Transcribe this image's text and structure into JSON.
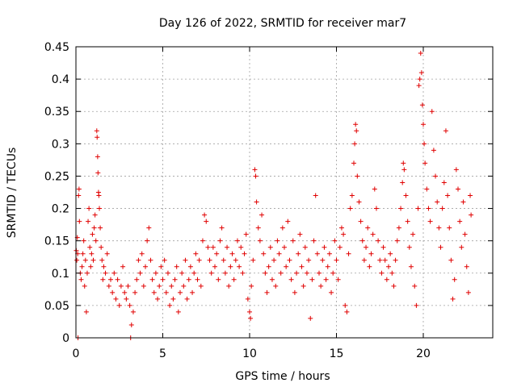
{
  "chart_data": {
    "type": "scatter",
    "title": "Day 126 of 2022, SRMTID for receiver mar7",
    "xlabel": "GPS time / hours",
    "ylabel": "SRMTID / TECUs",
    "xlim": [
      0,
      24
    ],
    "ylim": [
      0,
      0.45
    ],
    "xticks": [
      0,
      5,
      10,
      15,
      20
    ],
    "xtick_labels": [
      "0",
      "5",
      "10",
      "15",
      "20"
    ],
    "yticks": [
      0,
      0.05,
      0.1,
      0.15,
      0.2,
      0.25,
      0.3,
      0.35,
      0.4,
      0.45
    ],
    "ytick_labels": [
      "0",
      "0.05",
      "0.1",
      "0.15",
      "0.2",
      "0.25",
      "0.3",
      "0.35",
      "0.4",
      "0.45"
    ],
    "grid": true,
    "marker": "+",
    "color": "#e00000",
    "series": [
      {
        "name": "SRMTID",
        "points": [
          [
            0.02,
            0.135
          ],
          [
            0.05,
            0.12
          ],
          [
            0.08,
            0.155
          ],
          [
            0.1,
            0.13
          ],
          [
            0.12,
            0.0
          ],
          [
            0.15,
            0.22
          ],
          [
            0.18,
            0.23
          ],
          [
            0.2,
            0.18
          ],
          [
            0.25,
            0.1
          ],
          [
            0.3,
            0.09
          ],
          [
            0.35,
            0.11
          ],
          [
            0.4,
            0.13
          ],
          [
            0.45,
            0.15
          ],
          [
            0.5,
            0.08
          ],
          [
            0.55,
            0.12
          ],
          [
            0.6,
            0.04
          ],
          [
            0.65,
            0.1
          ],
          [
            0.7,
            0.18
          ],
          [
            0.75,
            0.2
          ],
          [
            0.8,
            0.14
          ],
          [
            0.85,
            0.11
          ],
          [
            0.9,
            0.13
          ],
          [
            0.95,
            0.16
          ],
          [
            1.0,
            0.12
          ],
          [
            1.05,
            0.17
          ],
          [
            1.1,
            0.19
          ],
          [
            1.15,
            0.15
          ],
          [
            1.2,
            0.32
          ],
          [
            1.22,
            0.31
          ],
          [
            1.25,
            0.28
          ],
          [
            1.27,
            0.255
          ],
          [
            1.3,
            0.225
          ],
          [
            1.32,
            0.22
          ],
          [
            1.35,
            0.2
          ],
          [
            1.4,
            0.17
          ],
          [
            1.45,
            0.14
          ],
          [
            1.5,
            0.12
          ],
          [
            1.55,
            0.09
          ],
          [
            1.6,
            0.11
          ],
          [
            1.7,
            0.1
          ],
          [
            1.8,
            0.13
          ],
          [
            1.9,
            0.08
          ],
          [
            2.0,
            0.09
          ],
          [
            2.1,
            0.07
          ],
          [
            2.2,
            0.1
          ],
          [
            2.3,
            0.06
          ],
          [
            2.4,
            0.09
          ],
          [
            2.5,
            0.05
          ],
          [
            2.6,
            0.08
          ],
          [
            2.7,
            0.11
          ],
          [
            2.8,
            0.07
          ],
          [
            2.9,
            0.06
          ],
          [
            3.0,
            0.08
          ],
          [
            3.1,
            0.05
          ],
          [
            3.15,
            0.0
          ],
          [
            3.2,
            0.02
          ],
          [
            3.3,
            0.04
          ],
          [
            3.4,
            0.07
          ],
          [
            3.5,
            0.09
          ],
          [
            3.6,
            0.12
          ],
          [
            3.7,
            0.1
          ],
          [
            3.8,
            0.13
          ],
          [
            3.9,
            0.08
          ],
          [
            4.0,
            0.11
          ],
          [
            4.1,
            0.15
          ],
          [
            4.2,
            0.17
          ],
          [
            4.3,
            0.12
          ],
          [
            4.4,
            0.09
          ],
          [
            4.5,
            0.07
          ],
          [
            4.6,
            0.1
          ],
          [
            4.7,
            0.06
          ],
          [
            4.8,
            0.08
          ],
          [
            4.9,
            0.11
          ],
          [
            5.0,
            0.09
          ],
          [
            5.1,
            0.12
          ],
          [
            5.2,
            0.07
          ],
          [
            5.3,
            0.1
          ],
          [
            5.4,
            0.05
          ],
          [
            5.5,
            0.08
          ],
          [
            5.6,
            0.06
          ],
          [
            5.7,
            0.09
          ],
          [
            5.8,
            0.11
          ],
          [
            5.9,
            0.04
          ],
          [
            6.0,
            0.07
          ],
          [
            6.1,
            0.1
          ],
          [
            6.2,
            0.08
          ],
          [
            6.3,
            0.12
          ],
          [
            6.4,
            0.06
          ],
          [
            6.5,
            0.09
          ],
          [
            6.6,
            0.11
          ],
          [
            6.7,
            0.07
          ],
          [
            6.8,
            0.1
          ],
          [
            6.9,
            0.13
          ],
          [
            7.0,
            0.09
          ],
          [
            7.1,
            0.12
          ],
          [
            7.2,
            0.08
          ],
          [
            7.3,
            0.15
          ],
          [
            7.4,
            0.19
          ],
          [
            7.5,
            0.18
          ],
          [
            7.6,
            0.14
          ],
          [
            7.7,
            0.12
          ],
          [
            7.8,
            0.1
          ],
          [
            7.9,
            0.14
          ],
          [
            8.0,
            0.11
          ],
          [
            8.1,
            0.13
          ],
          [
            8.2,
            0.09
          ],
          [
            8.3,
            0.15
          ],
          [
            8.4,
            0.17
          ],
          [
            8.5,
            0.12
          ],
          [
            8.6,
            0.1
          ],
          [
            8.7,
            0.14
          ],
          [
            8.8,
            0.08
          ],
          [
            8.9,
            0.11
          ],
          [
            9.0,
            0.13
          ],
          [
            9.1,
            0.09
          ],
          [
            9.2,
            0.12
          ],
          [
            9.3,
            0.15
          ],
          [
            9.4,
            0.11
          ],
          [
            9.5,
            0.14
          ],
          [
            9.6,
            0.1
          ],
          [
            9.7,
            0.13
          ],
          [
            9.8,
            0.16
          ],
          [
            9.9,
            0.06
          ],
          [
            10.0,
            0.04
          ],
          [
            10.05,
            0.03
          ],
          [
            10.1,
            0.08
          ],
          [
            10.2,
            0.12
          ],
          [
            10.3,
            0.26
          ],
          [
            10.35,
            0.25
          ],
          [
            10.4,
            0.21
          ],
          [
            10.5,
            0.17
          ],
          [
            10.6,
            0.15
          ],
          [
            10.7,
            0.19
          ],
          [
            10.8,
            0.13
          ],
          [
            10.9,
            0.1
          ],
          [
            11.0,
            0.07
          ],
          [
            11.1,
            0.11
          ],
          [
            11.2,
            0.14
          ],
          [
            11.3,
            0.09
          ],
          [
            11.4,
            0.12
          ],
          [
            11.5,
            0.08
          ],
          [
            11.6,
            0.15
          ],
          [
            11.7,
            0.13
          ],
          [
            11.8,
            0.1
          ],
          [
            11.9,
            0.17
          ],
          [
            12.0,
            0.14
          ],
          [
            12.1,
            0.11
          ],
          [
            12.2,
            0.18
          ],
          [
            12.3,
            0.12
          ],
          [
            12.4,
            0.09
          ],
          [
            12.5,
            0.15
          ],
          [
            12.6,
            0.07
          ],
          [
            12.7,
            0.1
          ],
          [
            12.8,
            0.13
          ],
          [
            12.9,
            0.16
          ],
          [
            13.0,
            0.11
          ],
          [
            13.1,
            0.08
          ],
          [
            13.2,
            0.14
          ],
          [
            13.3,
            0.1
          ],
          [
            13.4,
            0.12
          ],
          [
            13.5,
            0.03
          ],
          [
            13.6,
            0.09
          ],
          [
            13.7,
            0.15
          ],
          [
            13.8,
            0.22
          ],
          [
            13.9,
            0.13
          ],
          [
            14.0,
            0.1
          ],
          [
            14.1,
            0.08
          ],
          [
            14.2,
            0.12
          ],
          [
            14.3,
            0.14
          ],
          [
            14.4,
            0.09
          ],
          [
            14.5,
            0.11
          ],
          [
            14.6,
            0.13
          ],
          [
            14.7,
            0.07
          ],
          [
            14.8,
            0.1
          ],
          [
            14.9,
            0.15
          ],
          [
            15.0,
            0.12
          ],
          [
            15.1,
            0.09
          ],
          [
            15.2,
            0.14
          ],
          [
            15.3,
            0.17
          ],
          [
            15.4,
            0.16
          ],
          [
            15.5,
            0.05
          ],
          [
            15.6,
            0.04
          ],
          [
            15.7,
            0.13
          ],
          [
            15.8,
            0.2
          ],
          [
            15.9,
            0.22
          ],
          [
            16.0,
            0.27
          ],
          [
            16.05,
            0.3
          ],
          [
            16.1,
            0.33
          ],
          [
            16.15,
            0.32
          ],
          [
            16.2,
            0.25
          ],
          [
            16.3,
            0.21
          ],
          [
            16.4,
            0.18
          ],
          [
            16.5,
            0.15
          ],
          [
            16.6,
            0.12
          ],
          [
            16.7,
            0.14
          ],
          [
            16.8,
            0.17
          ],
          [
            16.9,
            0.11
          ],
          [
            17.0,
            0.13
          ],
          [
            17.1,
            0.16
          ],
          [
            17.2,
            0.23
          ],
          [
            17.3,
            0.2
          ],
          [
            17.4,
            0.15
          ],
          [
            17.5,
            0.12
          ],
          [
            17.6,
            0.1
          ],
          [
            17.7,
            0.14
          ],
          [
            17.8,
            0.12
          ],
          [
            17.9,
            0.09
          ],
          [
            18.0,
            0.11
          ],
          [
            18.1,
            0.13
          ],
          [
            18.2,
            0.1
          ],
          [
            18.3,
            0.08
          ],
          [
            18.4,
            0.12
          ],
          [
            18.5,
            0.15
          ],
          [
            18.6,
            0.17
          ],
          [
            18.7,
            0.2
          ],
          [
            18.8,
            0.24
          ],
          [
            18.85,
            0.27
          ],
          [
            18.9,
            0.26
          ],
          [
            19.0,
            0.22
          ],
          [
            19.1,
            0.18
          ],
          [
            19.2,
            0.14
          ],
          [
            19.3,
            0.11
          ],
          [
            19.4,
            0.16
          ],
          [
            19.5,
            0.08
          ],
          [
            19.6,
            0.05
          ],
          [
            19.7,
            0.2
          ],
          [
            19.75,
            0.39
          ],
          [
            19.8,
            0.4
          ],
          [
            19.85,
            0.44
          ],
          [
            19.9,
            0.41
          ],
          [
            19.95,
            0.36
          ],
          [
            20.0,
            0.33
          ],
          [
            20.05,
            0.3
          ],
          [
            20.1,
            0.27
          ],
          [
            20.2,
            0.23
          ],
          [
            20.3,
            0.2
          ],
          [
            20.4,
            0.18
          ],
          [
            20.5,
            0.35
          ],
          [
            20.6,
            0.29
          ],
          [
            20.7,
            0.25
          ],
          [
            20.8,
            0.21
          ],
          [
            20.9,
            0.17
          ],
          [
            21.0,
            0.14
          ],
          [
            21.1,
            0.2
          ],
          [
            21.2,
            0.24
          ],
          [
            21.3,
            0.32
          ],
          [
            21.4,
            0.22
          ],
          [
            21.5,
            0.17
          ],
          [
            21.6,
            0.12
          ],
          [
            21.7,
            0.06
          ],
          [
            21.8,
            0.09
          ],
          [
            21.9,
            0.26
          ],
          [
            22.0,
            0.23
          ],
          [
            22.1,
            0.18
          ],
          [
            22.2,
            0.14
          ],
          [
            22.3,
            0.21
          ],
          [
            22.4,
            0.16
          ],
          [
            22.5,
            0.11
          ],
          [
            22.6,
            0.07
          ],
          [
            22.7,
            0.22
          ],
          [
            22.75,
            0.19
          ]
        ]
      }
    ]
  }
}
